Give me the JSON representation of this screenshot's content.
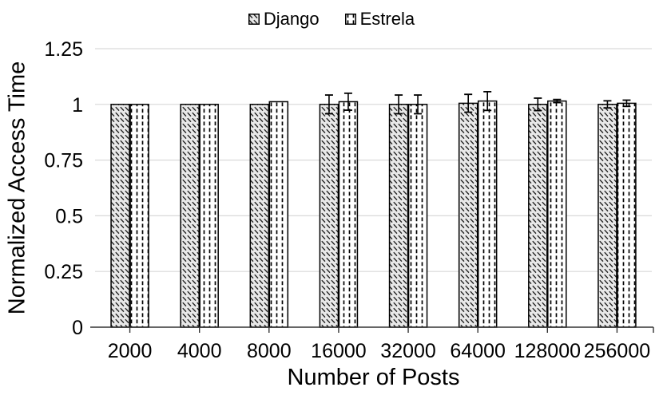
{
  "chart_data": {
    "type": "bar",
    "title": "",
    "xlabel": "Number of Posts",
    "ylabel": "Normalized Access Time",
    "categories": [
      "2000",
      "4000",
      "8000",
      "16000",
      "32000",
      "64000",
      "128000",
      "256000"
    ],
    "series": [
      {
        "name": "Django",
        "pattern": "diagonal-hatch",
        "fill": "#e8e8e8",
        "values": [
          1.0,
          1.0,
          1.0,
          1.0,
          1.0,
          1.005,
          1.0,
          1.0
        ],
        "errors": [
          0,
          0,
          0,
          0.042,
          0.042,
          0.04,
          0.028,
          0.016
        ]
      },
      {
        "name": "Estrela",
        "pattern": "vertical-dash",
        "fill": "#ffffff",
        "values": [
          1.0,
          1.0,
          1.012,
          1.012,
          1.0,
          1.015,
          1.015,
          1.005
        ],
        "errors": [
          0,
          0,
          0,
          0.038,
          0.042,
          0.042,
          0.007,
          0.014
        ]
      }
    ],
    "y_ticks": [
      0,
      0.25,
      0.5,
      0.75,
      1,
      1.25
    ],
    "y_tick_labels": [
      "0",
      "0.25",
      "0.5",
      "0.75",
      "1",
      "1.25"
    ],
    "ylim": [
      0,
      1.25
    ],
    "grid": "horizontal",
    "legend_position": "top",
    "error_bars": true
  },
  "colors": {
    "gridline": "#d9d9d9",
    "axis": "#333333",
    "bar_border": "#000000",
    "error_bar": "#000000",
    "text": "#000000",
    "django_fill": "#e8e8e8",
    "django_hatch": "#222222",
    "estrela_fill": "#ffffff",
    "estrela_dash": "#000000"
  }
}
